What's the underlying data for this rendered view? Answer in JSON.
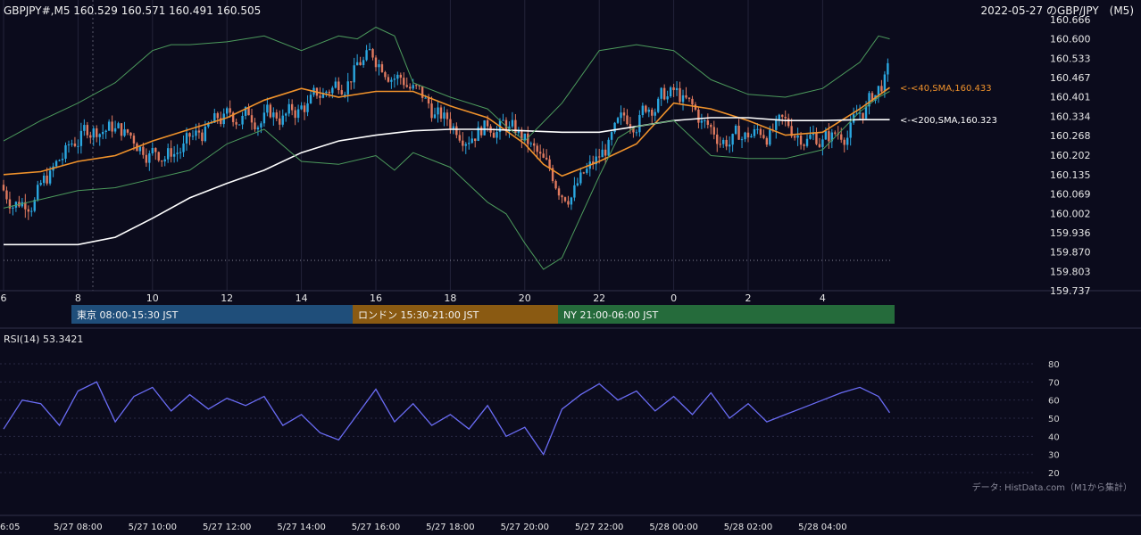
{
  "chart_data": {
    "type": "line",
    "header": {
      "symbol_line": "GBPJPY#,M5 160.529 160.571 160.491 160.505",
      "title_right": "2022-05-27 のGBP/JPY　(M5)"
    },
    "price_axis": {
      "ticks": [
        160.666,
        160.6,
        160.533,
        160.467,
        160.401,
        160.334,
        160.268,
        160.202,
        160.135,
        160.069,
        160.002,
        159.936,
        159.87,
        159.803,
        159.737
      ],
      "ylim": [
        159.737,
        160.666
      ]
    },
    "hour_ticks": [
      "6",
      "8",
      "10",
      "12",
      "14",
      "16",
      "18",
      "20",
      "22",
      "0",
      "2",
      "4"
    ],
    "sessions": [
      {
        "label": "東京 08:00-15:30 JST",
        "color": "#1f4e7a"
      },
      {
        "label": "ロンドン 15:30-21:00 JST",
        "color": "#8a5a12"
      },
      {
        "label": "NY 21:00-06:00 JST",
        "color": "#256b3b"
      }
    ],
    "ma_labels": [
      {
        "text": "<-<40,SMA,160.433",
        "value": 160.433,
        "color": "#f0922b"
      },
      {
        "text": "<-<200,SMA,160.323",
        "value": 160.323,
        "color": "#ffffff"
      }
    ],
    "series": [
      {
        "name": "40,SMA",
        "color": "#f0922b",
        "x": [
          6.0,
          7.0,
          8.0,
          9.0,
          10.0,
          11.0,
          12.0,
          13.0,
          14.0,
          15.0,
          16.0,
          17.0,
          18.0,
          19.0,
          20.0,
          20.5,
          21.0,
          22.0,
          23.0,
          24.0,
          25.0,
          26.0,
          27.0,
          28.0,
          29.0,
          29.8
        ],
        "values": [
          160.135,
          160.145,
          160.18,
          160.2,
          160.25,
          160.29,
          160.33,
          160.39,
          160.43,
          160.4,
          160.42,
          160.42,
          160.37,
          160.33,
          160.24,
          160.17,
          160.13,
          160.18,
          160.24,
          160.38,
          160.36,
          160.32,
          160.27,
          160.28,
          160.36,
          160.433
        ]
      },
      {
        "name": "200,SMA",
        "color": "#ffffff",
        "x": [
          6.0,
          8.0,
          9.0,
          10.0,
          11.0,
          12.0,
          13.0,
          14.0,
          15.0,
          16.0,
          17.0,
          18.0,
          19.0,
          20.0,
          21.0,
          22.0,
          23.0,
          24.0,
          25.0,
          26.0,
          27.0,
          28.0,
          29.0,
          29.8
        ],
        "values": [
          159.895,
          159.895,
          159.92,
          159.985,
          160.055,
          160.105,
          160.15,
          160.21,
          160.25,
          160.27,
          160.285,
          160.29,
          160.29,
          160.285,
          160.28,
          160.28,
          160.3,
          160.32,
          160.33,
          160.33,
          160.32,
          160.32,
          160.323,
          160.323
        ]
      },
      {
        "name": "BB upper",
        "color": "#4c9a5c",
        "x": [
          6.0,
          7.0,
          8.0,
          9.0,
          10.0,
          10.5,
          11.0,
          12.0,
          13.0,
          14.0,
          15.0,
          15.5,
          16.0,
          16.5,
          17.0,
          18.0,
          19.0,
          19.5,
          20.0,
          21.0,
          22.0,
          23.0,
          24.0,
          25.0,
          26.0,
          27.0,
          28.0,
          29.0,
          29.5,
          29.8
        ],
        "values": [
          160.25,
          160.32,
          160.38,
          160.45,
          160.56,
          160.58,
          160.58,
          160.59,
          160.61,
          160.56,
          160.61,
          160.6,
          160.64,
          160.61,
          160.45,
          160.4,
          160.36,
          160.3,
          160.25,
          160.38,
          160.56,
          160.58,
          160.56,
          160.46,
          160.41,
          160.4,
          160.43,
          160.52,
          160.61,
          160.6
        ]
      },
      {
        "name": "BB lower",
        "color": "#4c9a5c",
        "x": [
          6.0,
          7.0,
          8.0,
          9.0,
          10.0,
          11.0,
          12.0,
          13.0,
          14.0,
          15.0,
          16.0,
          16.5,
          17.0,
          18.0,
          19.0,
          19.5,
          20.0,
          20.5,
          21.0,
          22.0,
          22.5,
          23.0,
          24.0,
          25.0,
          26.0,
          27.0,
          28.0,
          29.0,
          29.5,
          29.8
        ],
        "values": [
          160.02,
          160.05,
          160.08,
          160.09,
          160.12,
          160.15,
          160.24,
          160.29,
          160.18,
          160.17,
          160.2,
          160.15,
          160.21,
          160.16,
          160.04,
          160.0,
          159.9,
          159.81,
          159.85,
          160.13,
          160.26,
          160.3,
          160.32,
          160.2,
          160.19,
          160.19,
          160.22,
          160.35,
          160.4,
          160.42
        ]
      }
    ],
    "rsi": {
      "label": "RSI(14) 53.3421",
      "ticks": [
        80,
        70,
        60,
        50,
        40,
        30,
        20
      ],
      "ylim": [
        20,
        80
      ],
      "color": "#6a6cf5",
      "x": [
        6.0,
        6.5,
        7.0,
        7.5,
        8.0,
        8.5,
        9.0,
        9.5,
        10.0,
        10.5,
        11.0,
        11.5,
        12.0,
        12.5,
        13.0,
        13.5,
        14.0,
        14.5,
        15.0,
        15.5,
        16.0,
        16.5,
        17.0,
        17.5,
        18.0,
        18.5,
        19.0,
        19.5,
        20.0,
        20.5,
        21.0,
        21.5,
        22.0,
        22.5,
        23.0,
        23.5,
        24.0,
        24.5,
        25.0,
        25.5,
        26.0,
        26.5,
        27.0,
        27.5,
        28.0,
        28.5,
        29.0,
        29.5,
        29.8
      ],
      "values": [
        44,
        60,
        58,
        46,
        65,
        70,
        48,
        62,
        67,
        54,
        63,
        55,
        61,
        57,
        62,
        46,
        52,
        42,
        38,
        52,
        66,
        48,
        58,
        46,
        52,
        44,
        57,
        40,
        45,
        30,
        55,
        63,
        69,
        60,
        65,
        54,
        62,
        52,
        64,
        50,
        58,
        48,
        52,
        56,
        60,
        64,
        67,
        62,
        53
      ]
    },
    "source_note": "データ: HistData.com（M1から集計）",
    "time_axis": [
      "6:05",
      "5/27 08:00",
      "5/27 10:00",
      "5/27 12:00",
      "5/27 14:00",
      "5/27 16:00",
      "5/27 18:00",
      "5/27 20:00",
      "5/27 22:00",
      "5/28 00:00",
      "5/28 02:00",
      "5/28 04:00"
    ]
  }
}
